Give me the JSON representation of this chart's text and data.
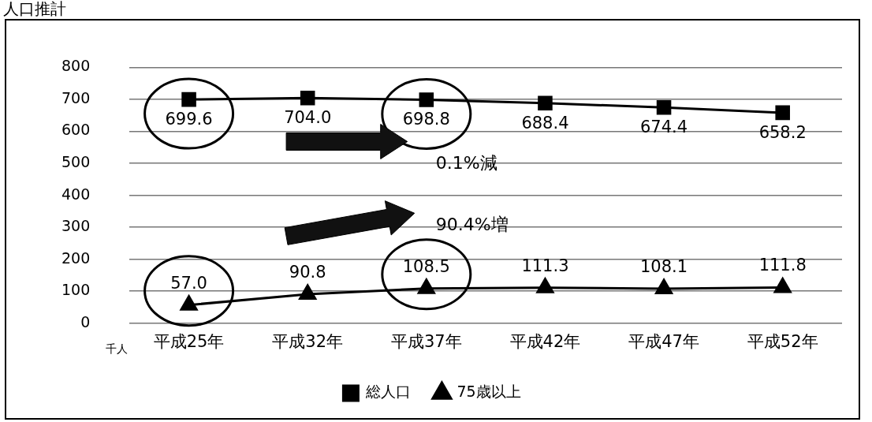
{
  "chart_data": {
    "type": "line",
    "title": "人口推計",
    "ylabel": "千人",
    "categories": [
      "平成25年",
      "平成32年",
      "平成37年",
      "平成42年",
      "平成47年",
      "平成52年"
    ],
    "series": [
      {
        "name": "総人口",
        "color": "#000000",
        "marker": "square",
        "values": [
          699.6,
          704.0,
          698.8,
          688.4,
          674.4,
          658.2
        ],
        "value_labels": [
          "699.6",
          "704.0",
          "698.8",
          "688.4",
          "674.4",
          "658.2"
        ]
      },
      {
        "name": "75歳以上",
        "color": "#000000",
        "marker": "triangle",
        "values": [
          57.0,
          90.8,
          108.5,
          111.3,
          108.1,
          111.8
        ],
        "value_labels": [
          "57.0",
          "90.8",
          "108.5",
          "111.3",
          "108.1",
          "111.8"
        ]
      }
    ],
    "ylim": [
      0,
      800
    ],
    "yticks": [
      0,
      100,
      200,
      300,
      400,
      500,
      600,
      700,
      800
    ],
    "grid": "y",
    "legend": "bottom",
    "annotations": [
      "0.1%減",
      "90.4%増"
    ]
  }
}
